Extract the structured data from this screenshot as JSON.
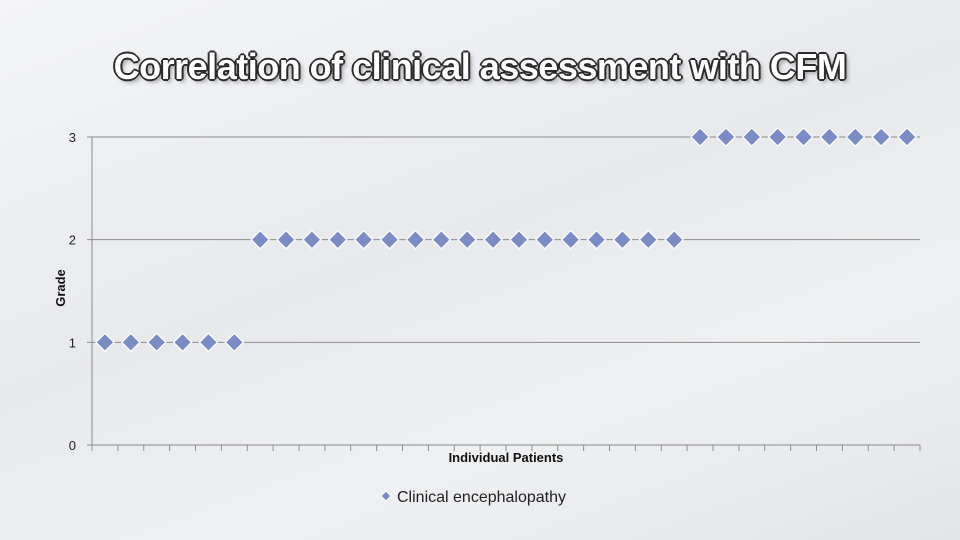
{
  "slide": {
    "title": "Correlation of clinical assessment with CFM"
  },
  "colors": {
    "marker_fill": "#7b8cc4",
    "marker_stroke": "#ffffff",
    "gridline": "#8c8c8c"
  },
  "chart_data": {
    "type": "scatter",
    "title": "",
    "xlabel": "Individual Patients",
    "ylabel": "Grade",
    "ylim": [
      0,
      3
    ],
    "yticks": [
      "0",
      "1",
      "2",
      "3"
    ],
    "grid": true,
    "legend_position": "bottom",
    "x": [
      1,
      2,
      3,
      4,
      5,
      6,
      7,
      8,
      9,
      10,
      11,
      12,
      13,
      14,
      15,
      16,
      17,
      18,
      19,
      20,
      21,
      22,
      23,
      24,
      25,
      26,
      27,
      28,
      29,
      30,
      31,
      32
    ],
    "series": [
      {
        "name": "Clinical encephalopathy",
        "marker": "diamond",
        "values": [
          1,
          1,
          1,
          1,
          1,
          1,
          2,
          2,
          2,
          2,
          2,
          2,
          2,
          2,
          2,
          2,
          2,
          2,
          2,
          2,
          2,
          2,
          2,
          3,
          3,
          3,
          3,
          3,
          3,
          3,
          3,
          3
        ]
      }
    ]
  }
}
